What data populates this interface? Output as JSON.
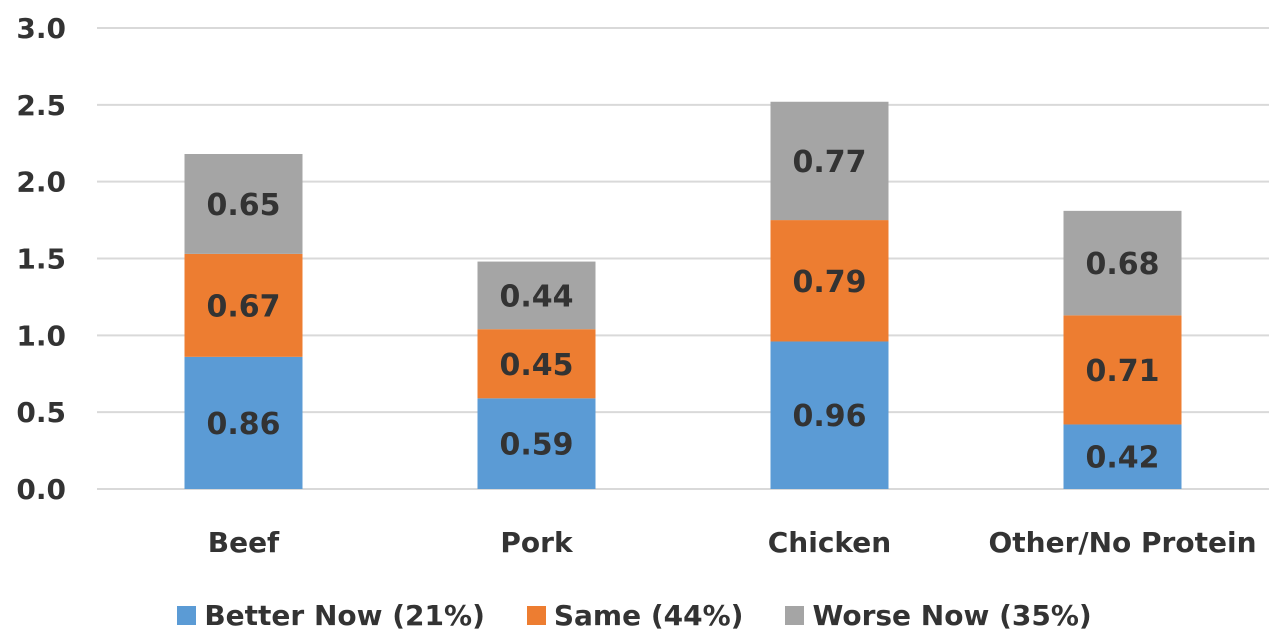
{
  "chart_data": {
    "type": "bar",
    "stacked": true,
    "categories": [
      "Beef",
      "Pork",
      "Chicken",
      "Other/No Protein"
    ],
    "series": [
      {
        "name": "Better Now (21%)",
        "values": [
          0.86,
          0.59,
          0.96,
          0.42
        ],
        "color": "#5B9BD5"
      },
      {
        "name": "Same (44%)",
        "values": [
          0.67,
          0.45,
          0.79,
          0.71
        ],
        "color": "#ED7D31"
      },
      {
        "name": "Worse Now (35%)",
        "values": [
          0.65,
          0.44,
          0.77,
          0.68
        ],
        "color": "#A5A5A5"
      }
    ],
    "ylim": [
      0,
      3.0
    ],
    "yticks": [
      "0.0",
      "0.5",
      "1.0",
      "1.5",
      "2.0",
      "2.5",
      "3.0"
    ],
    "grid": true,
    "legend_position": "bottom",
    "title": "",
    "xlabel": "",
    "ylabel": ""
  }
}
